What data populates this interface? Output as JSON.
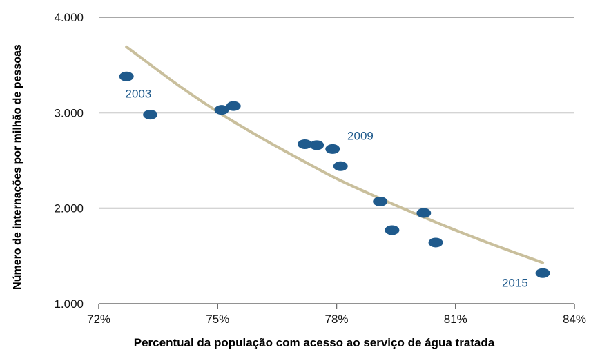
{
  "chart_data": {
    "type": "scatter",
    "xlabel": "Percentual da população com acesso ao serviço de água tratada",
    "ylabel": "Número de internações por milhão de pessoas",
    "xlim": [
      72,
      84
    ],
    "ylim": [
      1000,
      4000
    ],
    "x_ticks": [
      72,
      75,
      78,
      81,
      84
    ],
    "x_tick_labels": [
      "72%",
      "75%",
      "78%",
      "81%",
      "84%"
    ],
    "y_ticks": [
      1000,
      2000,
      3000,
      4000
    ],
    "y_tick_labels": [
      "1.000",
      "2.000",
      "3.000",
      "4.000"
    ],
    "grid": "horizontal",
    "point_color": "#1f5a8c",
    "trend_color": "#c9bf9c",
    "grid_color": "#8c8c8c",
    "points": [
      {
        "x": 72.7,
        "y": 3380
      },
      {
        "x": 73.3,
        "y": 2980
      },
      {
        "x": 75.1,
        "y": 3030
      },
      {
        "x": 75.4,
        "y": 3070
      },
      {
        "x": 77.2,
        "y": 2670
      },
      {
        "x": 77.5,
        "y": 2660
      },
      {
        "x": 77.9,
        "y": 2620
      },
      {
        "x": 78.1,
        "y": 2440
      },
      {
        "x": 79.1,
        "y": 2070
      },
      {
        "x": 79.4,
        "y": 1770
      },
      {
        "x": 80.2,
        "y": 1950
      },
      {
        "x": 80.5,
        "y": 1640
      },
      {
        "x": 83.2,
        "y": 1320
      }
    ],
    "annotations": [
      {
        "text": "2003",
        "x": 73.0,
        "y": 3200
      },
      {
        "text": "2009",
        "x": 78.6,
        "y": 2760
      },
      {
        "text": "2015",
        "x": 82.5,
        "y": 1220
      }
    ],
    "trendline": {
      "x": [
        72.7,
        74,
        75,
        76,
        77,
        78,
        79,
        80,
        81,
        82,
        83.2
      ],
      "y": [
        3690,
        3290,
        3010,
        2760,
        2530,
        2310,
        2120,
        1940,
        1770,
        1610,
        1430
      ]
    }
  }
}
